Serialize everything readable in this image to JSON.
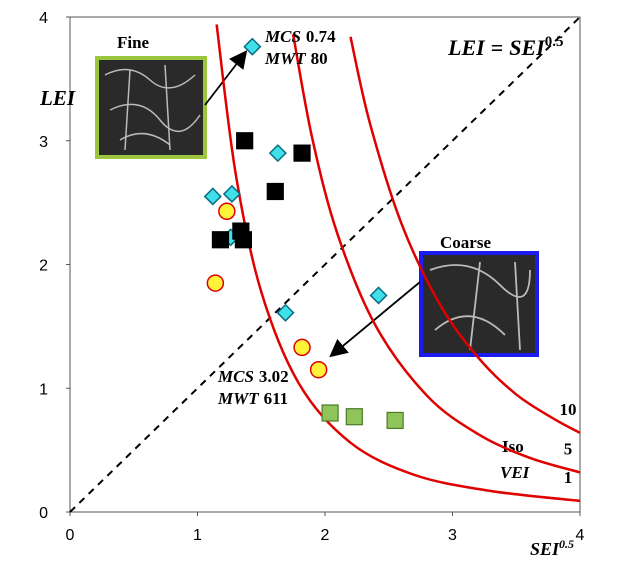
{
  "chart_data": {
    "type": "scatter",
    "x_label": "SEI",
    "x_label_sup": "0.5",
    "y_label": "LEI",
    "equation": {
      "left": "LEI",
      "eq": "=",
      "right": "SEI",
      "sup": "0.5"
    },
    "xlim": [
      0,
      4
    ],
    "ylim": [
      0,
      4
    ],
    "xticks": [
      0,
      1,
      2,
      3,
      4
    ],
    "yticks": [
      0,
      1,
      2,
      3,
      4
    ],
    "series": [
      {
        "marker": "diamond",
        "color": "#3fe0ea",
        "x": [
          1.12,
          1.27,
          1.63,
          1.43,
          1.26,
          1.69,
          2.42
        ],
        "values": [
          2.55,
          2.57,
          2.9,
          3.76,
          2.22,
          1.61,
          1.75
        ]
      },
      {
        "marker": "square",
        "color": "#000000",
        "x": [
          1.37,
          1.82,
          1.61,
          1.18,
          1.34,
          1.36
        ],
        "values": [
          3.0,
          2.9,
          2.59,
          2.2,
          2.27,
          2.2
        ]
      },
      {
        "marker": "circle",
        "color": "#fff23a",
        "x": [
          1.23,
          1.14,
          1.82,
          1.95
        ],
        "values": [
          2.43,
          1.85,
          1.33,
          1.15
        ]
      },
      {
        "marker": "square",
        "color": "#8fc45a",
        "x": [
          2.04,
          2.23,
          2.55
        ],
        "values": [
          0.8,
          0.77,
          0.74
        ]
      }
    ],
    "curves": [
      {
        "label": "1",
        "color": "#e00000",
        "x": [
          1.15,
          1.3,
          1.5,
          1.8,
          2.2,
          2.7,
          3.3,
          4.0
        ],
        "values": [
          3.94,
          2.73,
          1.78,
          1.03,
          0.56,
          0.3,
          0.17,
          0.09
        ]
      },
      {
        "label": "5",
        "color": "#e00000",
        "x": [
          1.75,
          1.9,
          2.1,
          2.4,
          2.8,
          3.2,
          3.6,
          4.0
        ],
        "values": [
          3.86,
          3.02,
          2.24,
          1.5,
          0.94,
          0.63,
          0.44,
          0.32
        ]
      },
      {
        "label": "10",
        "color": "#e00000",
        "x": [
          2.2,
          2.35,
          2.6,
          2.9,
          3.2,
          3.5,
          3.8,
          4.0
        ],
        "values": [
          3.84,
          3.15,
          2.33,
          1.68,
          1.25,
          0.95,
          0.75,
          0.64
        ]
      }
    ],
    "curve_title": [
      "Iso",
      "VEI"
    ],
    "insets": [
      {
        "label": "Fine"
      },
      {
        "label": "Coarse"
      }
    ],
    "annotations": [
      {
        "lines": [
          {
            "key": "MCS",
            "value": "0.74"
          },
          {
            "key": "MWT",
            "value": "80"
          }
        ]
      },
      {
        "lines": [
          {
            "key": "MCS",
            "value": "3.02"
          },
          {
            "key": "MWT",
            "value": "611"
          }
        ]
      }
    ]
  }
}
